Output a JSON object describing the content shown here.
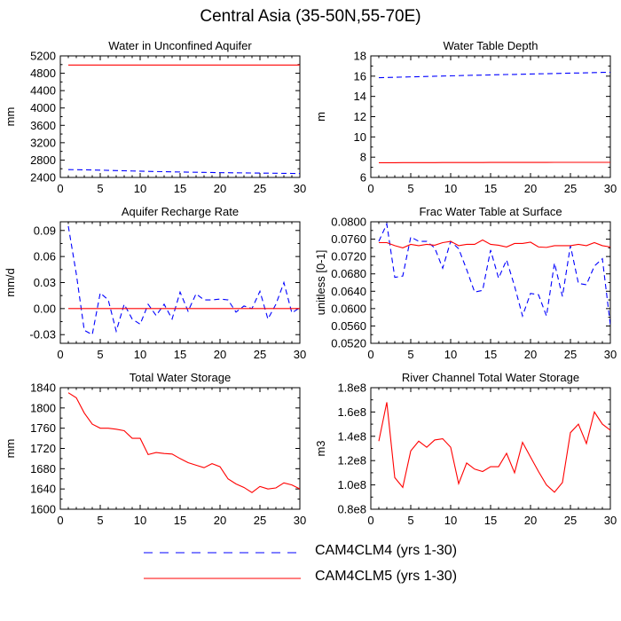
{
  "figure": {
    "title": "Central Asia (35-50N,55-70E)",
    "legend": [
      {
        "label": "CAM4CLM4 (yrs 1-30)",
        "color": "#0000ff",
        "dash": true
      },
      {
        "label": "CAM4CLM5 (yrs 1-30)",
        "color": "#ff0000",
        "dash": false
      }
    ]
  },
  "colors": {
    "clm4": "#0000ff",
    "clm5": "#ff0000"
  },
  "chart_data": [
    {
      "type": "line",
      "title": "Water in Unconfined Aquifer",
      "ylabel": "mm",
      "xlabel": "",
      "xlim": [
        0,
        30
      ],
      "ylim": [
        2400,
        5200
      ],
      "xticks": [
        0,
        5,
        10,
        15,
        20,
        25,
        30
      ],
      "yticks": [
        2400,
        2800,
        3200,
        3600,
        4000,
        4400,
        4800,
        5200
      ],
      "ytick_labels": [
        "2400",
        "2800",
        "3200",
        "3600",
        "4000",
        "4400",
        "4800",
        "5200"
      ],
      "x": [
        1,
        2,
        3,
        4,
        5,
        6,
        7,
        8,
        9,
        10,
        11,
        12,
        13,
        14,
        15,
        16,
        17,
        18,
        19,
        20,
        21,
        22,
        23,
        24,
        25,
        26,
        27,
        28,
        29,
        30
      ],
      "series": [
        {
          "name": "CAM4CLM4 (yrs 1-30)",
          "color": "#0000ff",
          "dash": true,
          "values": [
            2580,
            2578,
            2575,
            2572,
            2568,
            2563,
            2558,
            2553,
            2548,
            2544,
            2540,
            2536,
            2532,
            2528,
            2525,
            2522,
            2519,
            2516,
            2513,
            2510,
            2508,
            2506,
            2504,
            2502,
            2500,
            2498,
            2496,
            2494,
            2492,
            2490
          ]
        },
        {
          "name": "CAM4CLM5 (yrs 1-30)",
          "color": "#ff0000",
          "dash": false,
          "values": [
            4990,
            4990,
            4990,
            4990,
            4990,
            4990,
            4990,
            4990,
            4990,
            4990,
            4990,
            4990,
            4990,
            4990,
            4990,
            4990,
            4990,
            4990,
            4990,
            4990,
            4990,
            4990,
            4990,
            4990,
            4990,
            4990,
            4990,
            4990,
            4990,
            4990
          ]
        }
      ]
    },
    {
      "type": "line",
      "title": "Water Table Depth",
      "ylabel": "m",
      "xlabel": "",
      "xlim": [
        0,
        30
      ],
      "ylim": [
        6,
        18
      ],
      "xticks": [
        0,
        5,
        10,
        15,
        20,
        25,
        30
      ],
      "yticks": [
        6,
        8,
        10,
        12,
        14,
        16,
        18
      ],
      "ytick_labels": [
        "6",
        "8",
        "10",
        "12",
        "14",
        "16",
        "18"
      ],
      "x": [
        1,
        2,
        3,
        4,
        5,
        6,
        7,
        8,
        9,
        10,
        11,
        12,
        13,
        14,
        15,
        16,
        17,
        18,
        19,
        20,
        21,
        22,
        23,
        24,
        25,
        26,
        27,
        28,
        29,
        30
      ],
      "series": [
        {
          "name": "CAM4CLM4 (yrs 1-30)",
          "color": "#0000ff",
          "dash": true,
          "values": [
            15.85,
            15.87,
            15.89,
            15.91,
            15.93,
            15.95,
            15.97,
            15.99,
            16.01,
            16.03,
            16.05,
            16.07,
            16.09,
            16.1,
            16.12,
            16.14,
            16.16,
            16.17,
            16.19,
            16.21,
            16.23,
            16.24,
            16.26,
            16.28,
            16.3,
            16.31,
            16.33,
            16.35,
            16.37,
            16.38
          ]
        },
        {
          "name": "CAM4CLM5 (yrs 1-30)",
          "color": "#ff0000",
          "dash": false,
          "values": [
            7.45,
            7.45,
            7.45,
            7.46,
            7.46,
            7.46,
            7.46,
            7.46,
            7.47,
            7.47,
            7.47,
            7.47,
            7.47,
            7.47,
            7.48,
            7.48,
            7.48,
            7.48,
            7.48,
            7.48,
            7.48,
            7.48,
            7.49,
            7.49,
            7.49,
            7.49,
            7.49,
            7.49,
            7.49,
            7.49
          ]
        }
      ]
    },
    {
      "type": "line",
      "title": "Aquifer Recharge Rate",
      "ylabel": "mm/d",
      "xlabel": "",
      "xlim": [
        0,
        30
      ],
      "ylim": [
        -0.04,
        0.1
      ],
      "xticks": [
        0,
        5,
        10,
        15,
        20,
        25,
        30
      ],
      "yticks": [
        -0.03,
        0,
        0.03,
        0.06,
        0.09
      ],
      "ytick_labels": [
        "-0.03",
        "0.00",
        "0.03",
        "0.06",
        "0.09"
      ],
      "x": [
        1,
        2,
        3,
        4,
        5,
        6,
        7,
        8,
        9,
        10,
        11,
        12,
        13,
        14,
        15,
        16,
        17,
        18,
        19,
        20,
        21,
        22,
        23,
        24,
        25,
        26,
        27,
        28,
        29,
        30
      ],
      "series": [
        {
          "name": "CAM4CLM4 (yrs 1-30)",
          "color": "#0000ff",
          "dash": true,
          "values": [
            0.095,
            0.04,
            -0.025,
            -0.03,
            0.018,
            0.01,
            -0.026,
            0.005,
            -0.012,
            -0.018,
            0.005,
            -0.008,
            0.005,
            -0.012,
            0.019,
            -0.003,
            0.017,
            0.01,
            0.01,
            0.011,
            0.01,
            -0.004,
            0.003,
            0,
            0.02,
            -0.012,
            0.005,
            0.03,
            -0.005,
            0.001
          ]
        },
        {
          "name": "CAM4CLM5 (yrs 1-30)",
          "color": "#ff0000",
          "dash": false,
          "values": [
            0,
            0,
            0,
            0,
            0,
            0,
            0,
            0,
            0,
            0,
            0,
            0,
            0,
            0,
            0,
            0,
            0,
            0,
            0,
            0,
            0,
            0,
            0,
            0,
            0,
            0,
            0,
            0,
            0,
            0
          ]
        }
      ]
    },
    {
      "type": "line",
      "title": "Frac Water Table at Surface",
      "ylabel": "unitless [0-1]",
      "xlabel": "",
      "xlim": [
        0,
        30
      ],
      "ylim": [
        0.052,
        0.08
      ],
      "xticks": [
        0,
        5,
        10,
        15,
        20,
        25,
        30
      ],
      "yticks": [
        0.052,
        0.056,
        0.06,
        0.064,
        0.068,
        0.072,
        0.076,
        0.08
      ],
      "ytick_labels": [
        "0.0520",
        "0.0560",
        "0.0600",
        "0.0640",
        "0.0680",
        "0.0720",
        "0.0760",
        "0.0800"
      ],
      "x": [
        1,
        2,
        3,
        4,
        5,
        6,
        7,
        8,
        9,
        10,
        11,
        12,
        13,
        14,
        15,
        16,
        17,
        18,
        19,
        20,
        21,
        22,
        23,
        24,
        25,
        26,
        27,
        28,
        29,
        30
      ],
      "series": [
        {
          "name": "CAM4CLM4 (yrs 1-30)",
          "color": "#0000ff",
          "dash": true,
          "values": [
            0.0755,
            0.0795,
            0.0672,
            0.0675,
            0.0765,
            0.0755,
            0.0755,
            0.074,
            0.0693,
            0.0755,
            0.0738,
            0.069,
            0.0638,
            0.0642,
            0.0735,
            0.067,
            0.0712,
            0.0652,
            0.0583,
            0.0635,
            0.0632,
            0.0583,
            0.0705,
            0.0628,
            0.0745,
            0.0658,
            0.0655,
            0.0698,
            0.0715,
            0.0562
          ]
        },
        {
          "name": "CAM4CLM5 (yrs 1-30)",
          "color": "#ff0000",
          "dash": false,
          "values": [
            0.0752,
            0.0752,
            0.0745,
            0.074,
            0.0748,
            0.0745,
            0.0748,
            0.0746,
            0.0752,
            0.0755,
            0.0745,
            0.0748,
            0.0748,
            0.0758,
            0.0748,
            0.0746,
            0.0742,
            0.075,
            0.075,
            0.0753,
            0.0742,
            0.0741,
            0.0745,
            0.0745,
            0.0745,
            0.0748,
            0.0745,
            0.0752,
            0.0745,
            0.0742
          ]
        }
      ]
    },
    {
      "type": "line",
      "title": "Total Water Storage",
      "ylabel": "mm",
      "xlabel": "",
      "xlim": [
        0,
        30
      ],
      "ylim": [
        1600,
        1840
      ],
      "xticks": [
        0,
        5,
        10,
        15,
        20,
        25,
        30
      ],
      "yticks": [
        1600,
        1640,
        1680,
        1720,
        1760,
        1800,
        1840
      ],
      "ytick_labels": [
        "1600",
        "1640",
        "1680",
        "1720",
        "1760",
        "1800",
        "1840"
      ],
      "x": [
        1,
        2,
        3,
        4,
        5,
        6,
        7,
        8,
        9,
        10,
        11,
        12,
        13,
        14,
        15,
        16,
        17,
        18,
        19,
        20,
        21,
        22,
        23,
        24,
        25,
        26,
        27,
        28,
        29,
        30
      ],
      "series": [
        {
          "name": "CAM4CLM5 (yrs 1-30)",
          "color": "#ff0000",
          "dash": false,
          "values": [
            1830,
            1820,
            1790,
            1768,
            1760,
            1760,
            1758,
            1755,
            1740,
            1740,
            1708,
            1712,
            1710,
            1709,
            1700,
            1692,
            1687,
            1682,
            1690,
            1684,
            1660,
            1650,
            1643,
            1633,
            1645,
            1640,
            1642,
            1652,
            1648,
            1640
          ]
        }
      ]
    },
    {
      "type": "line",
      "title": "River Channel Total Water Storage",
      "ylabel": "m3",
      "xlabel": "",
      "xlim": [
        0,
        30
      ],
      "ylim": [
        80000000.0,
        180000000.0
      ],
      "xticks": [
        0,
        5,
        10,
        15,
        20,
        25,
        30
      ],
      "yticks": [
        80000000.0,
        100000000.0,
        120000000.0,
        140000000.0,
        160000000.0,
        180000000.0
      ],
      "ytick_labels": [
        "0.8e8",
        "1.0e8",
        "1.2e8",
        "1.4e8",
        "1.6e8",
        "1.8e8"
      ],
      "x": [
        1,
        2,
        3,
        4,
        5,
        6,
        7,
        8,
        9,
        10,
        11,
        12,
        13,
        14,
        15,
        16,
        17,
        18,
        19,
        20,
        21,
        22,
        23,
        24,
        25,
        26,
        27,
        28,
        29,
        30
      ],
      "series": [
        {
          "name": "CAM4CLM5 (yrs 1-30)",
          "color": "#ff0000",
          "dash": false,
          "values": [
            136000000.0,
            168000000.0,
            106000000.0,
            98000000.0,
            128000000.0,
            136000000.0,
            131000000.0,
            137000000.0,
            138000000.0,
            131000000.0,
            101000000.0,
            118000000.0,
            113000000.0,
            111000000.0,
            115000000.0,
            115000000.0,
            126000000.0,
            110000000.0,
            135000000.0,
            123000000.0,
            111000000.0,
            100000000.0,
            94000000.0,
            102000000.0,
            143000000.0,
            150000000.0,
            134000000.0,
            160000000.0,
            150000000.0,
            145000000.0
          ]
        }
      ]
    }
  ]
}
